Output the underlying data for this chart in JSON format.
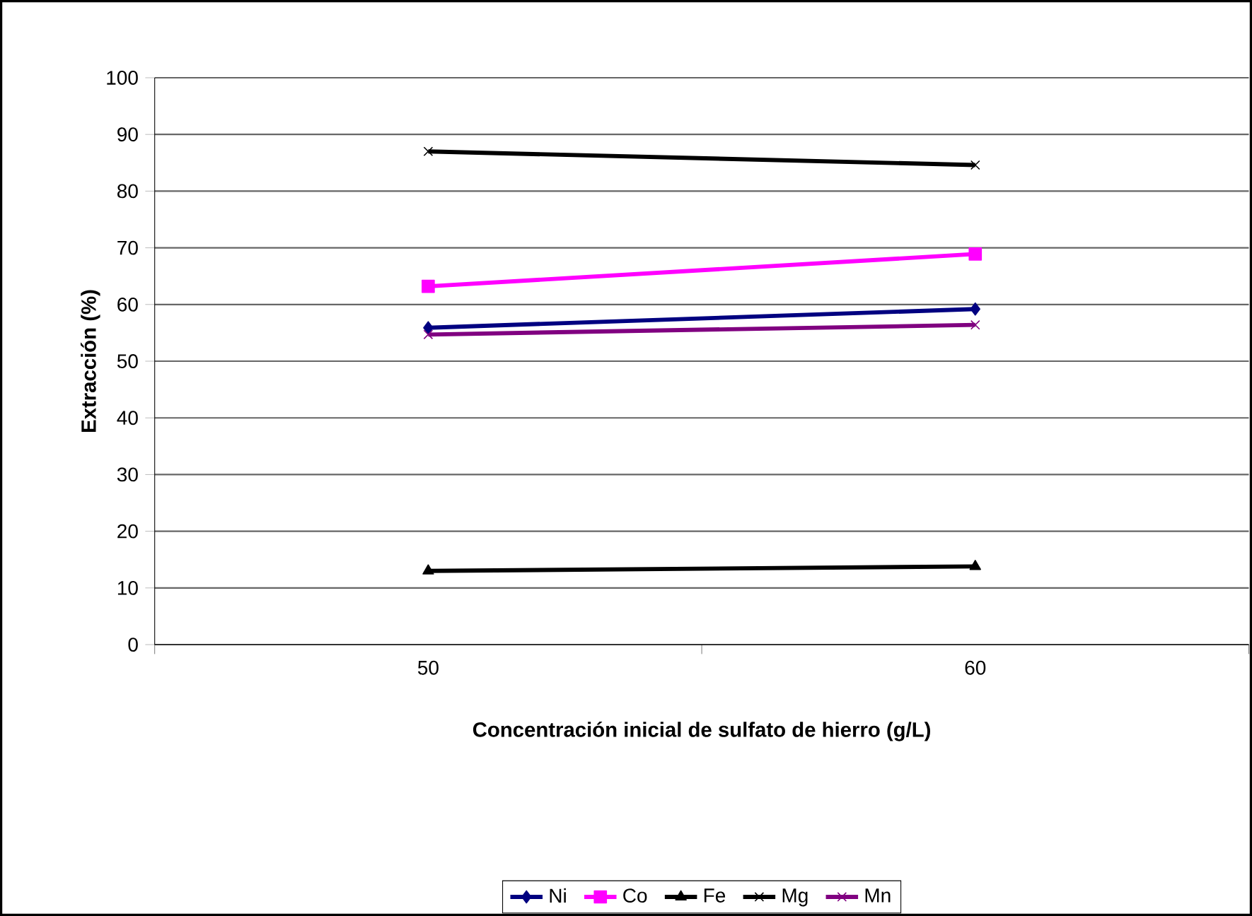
{
  "chart_data": {
    "type": "line",
    "xlabel": "Concentración inicial de sulfato de hierro (g/L)",
    "ylabel": "Extracción (%)",
    "categories": [
      "50",
      "60"
    ],
    "series": [
      {
        "name": "Ni",
        "color": "#000080",
        "marker": "diamond",
        "values": [
          55.9,
          59.2
        ]
      },
      {
        "name": "Co",
        "color": "#ff00ff",
        "marker": "square",
        "values": [
          63.2,
          68.9
        ]
      },
      {
        "name": "Fe",
        "color": "#000000",
        "marker": "triangle",
        "values": [
          13.0,
          13.8
        ]
      },
      {
        "name": "Mg",
        "color": "#000000",
        "marker": "cross",
        "values": [
          87.0,
          84.6
        ]
      },
      {
        "name": "Mn",
        "color": "#800080",
        "marker": "cross",
        "values": [
          54.7,
          56.4
        ]
      }
    ],
    "ylim": [
      0,
      100
    ],
    "yticks": [
      0,
      10,
      20,
      30,
      40,
      50,
      60,
      70,
      80,
      90,
      100
    ],
    "grid": "y",
    "legend": "bottom"
  }
}
